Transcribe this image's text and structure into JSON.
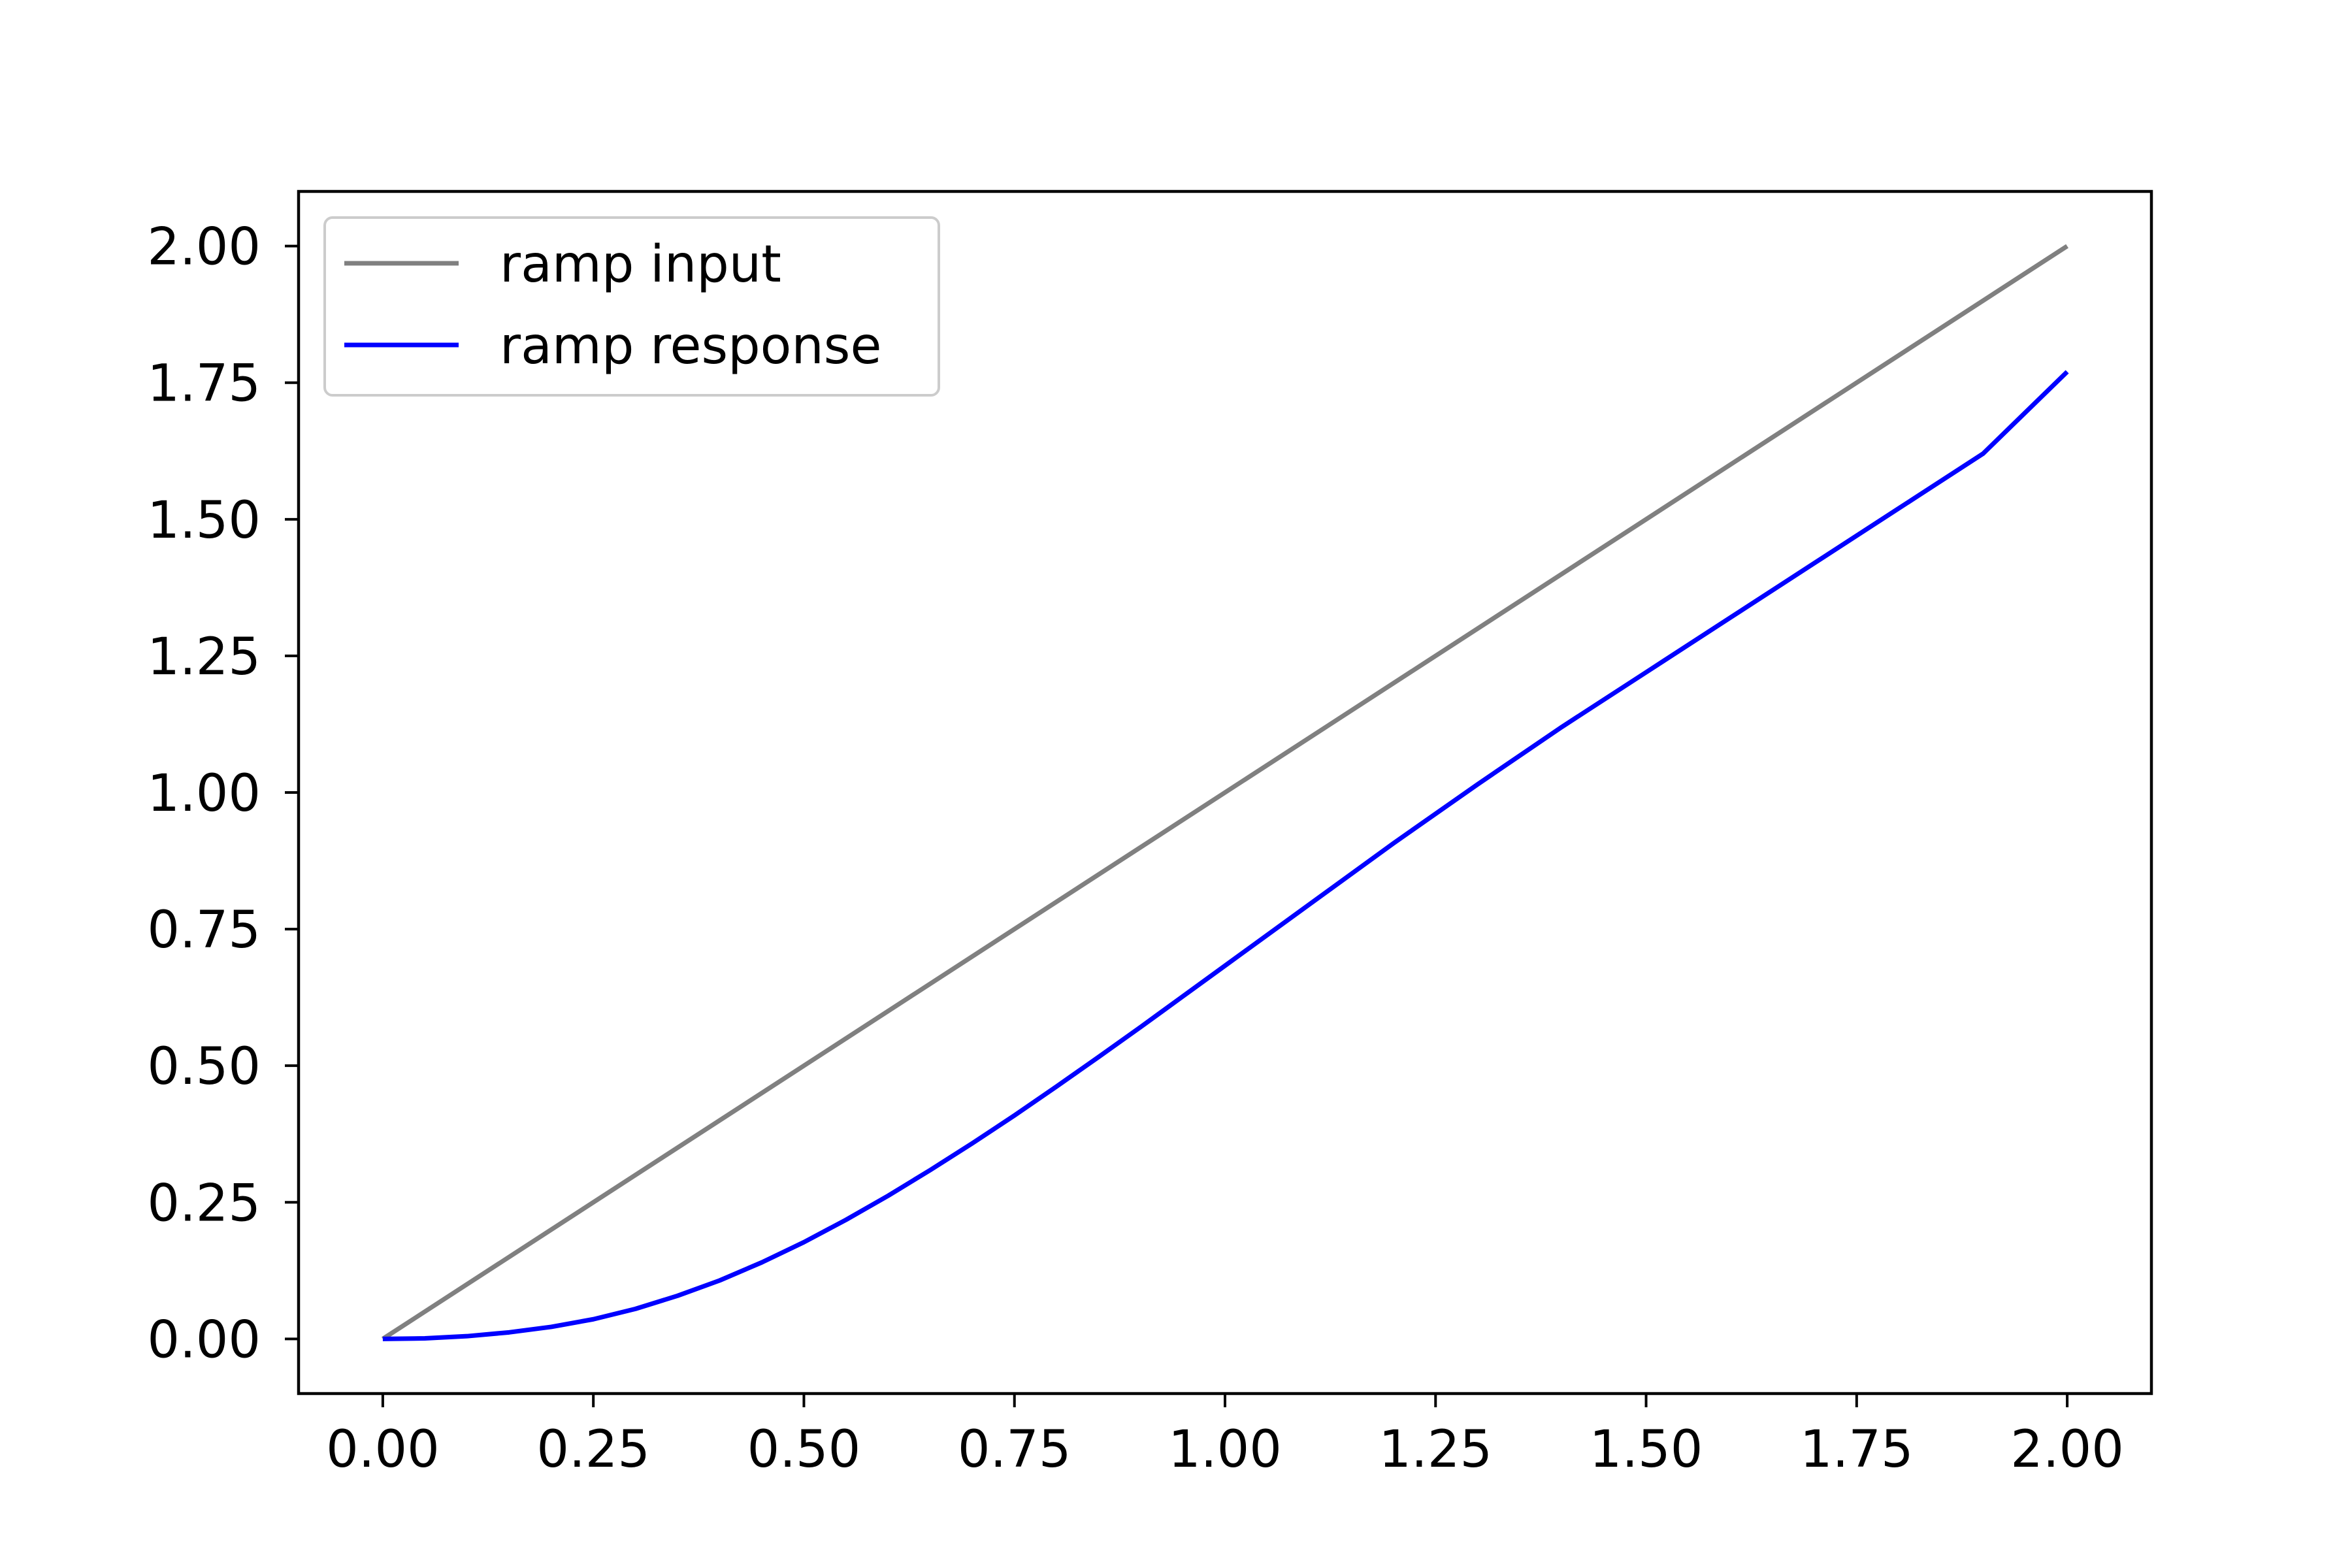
{
  "chart_data": {
    "type": "line",
    "title": "",
    "xlabel": "",
    "ylabel": "",
    "xlim": [
      -0.1,
      2.1
    ],
    "ylim": [
      -0.1,
      2.1
    ],
    "x_ticks": [
      "0.00",
      "0.25",
      "0.50",
      "0.75",
      "1.00",
      "1.25",
      "1.50",
      "1.75",
      "2.00"
    ],
    "y_ticks": [
      "0.00",
      "0.25",
      "0.50",
      "0.75",
      "1.00",
      "1.25",
      "1.50",
      "1.75",
      "2.00"
    ],
    "grid": false,
    "legend_position": "top-left",
    "series": [
      {
        "name": "ramp input",
        "color": "#808080",
        "x": [
          0.0,
          2.0
        ],
        "y": [
          0.0,
          2.0
        ]
      },
      {
        "name": "ramp response",
        "color": "#0000ff",
        "x": [
          0.0,
          0.05,
          0.1,
          0.15,
          0.2,
          0.25,
          0.3,
          0.35,
          0.4,
          0.45,
          0.5,
          0.55,
          0.6,
          0.65,
          0.7,
          0.75,
          0.8,
          0.85,
          0.9,
          0.95,
          1.0,
          1.1,
          1.2,
          1.3,
          1.4,
          1.5,
          1.6,
          1.7,
          1.8,
          1.9,
          2.0
        ],
        "y": [
          0.0,
          0.001,
          0.005,
          0.012,
          0.022,
          0.036,
          0.055,
          0.079,
          0.107,
          0.14,
          0.177,
          0.218,
          0.262,
          0.309,
          0.358,
          0.409,
          0.462,
          0.516,
          0.571,
          0.627,
          0.683,
          0.795,
          0.907,
          1.015,
          1.12,
          1.22,
          1.32,
          1.42,
          1.52,
          1.62,
          1.77
        ]
      }
    ]
  }
}
